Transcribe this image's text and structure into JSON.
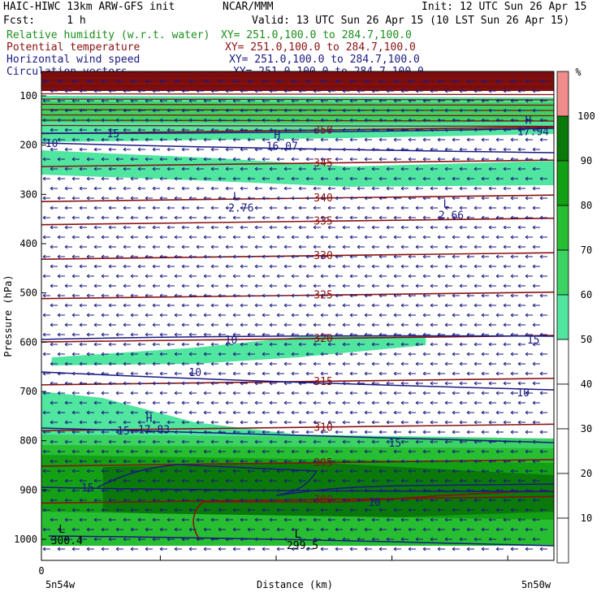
{
  "header": {
    "model": "HAIC-HIWC 13km ARW-GFS init",
    "org": "NCAR/MMM",
    "init": "Init: 12 UTC Sun 26 Apr 15",
    "fcst": "Fcst:     1 h",
    "valid": "Valid: 13 UTC Sun 26 Apr 15 (10 LST Sun 26 Apr 15)"
  },
  "fields": [
    {
      "name": "Relative humidity (w.r.t. water)",
      "xy": "XY= 251.0,100.0 to 284.7,100.0",
      "color": "#1a8f1a"
    },
    {
      "name": "Potential temperature",
      "xy": "XY= 251.0,100.0 to 284.7,100.0",
      "color": "#8b1010"
    },
    {
      "name": "Horizontal wind speed",
      "xy": "XY= 251.0,100.0 to 284.7,100.0",
      "color": "#1a1a80"
    },
    {
      "name": "Circulation vectors",
      "xy": "XY= 251.0,100.0 to 284.7,100.0",
      "color": "#1a1a80"
    }
  ],
  "chart_data": {
    "type": "heatmap",
    "title": "",
    "xlabel": "Distance (km)",
    "ylabel": "Pressure (hPa)",
    "x_origin_label": "0",
    "x_left_label": "5n54w",
    "x_right_label": "5n50w",
    "y_ticks": [
      100,
      200,
      300,
      400,
      500,
      600,
      700,
      800,
      900,
      1000
    ],
    "ylim": [
      1050,
      50
    ],
    "colorbar": {
      "unit": "%",
      "levels": [
        10,
        20,
        30,
        40,
        50,
        60,
        70,
        80,
        90,
        100
      ],
      "colors": {
        "50-60": "#50e6a0",
        "60-70": "#3cd264",
        "70-80": "#28be32",
        "80-90": "#14a014",
        "90-100": "#0a780a",
        "100+": "#f08c8c"
      }
    },
    "theta_contours": [
      {
        "label": "350",
        "p": 170
      },
      {
        "label": "345",
        "p": 237
      },
      {
        "label": "340",
        "p": 308
      },
      {
        "label": "335",
        "p": 355
      },
      {
        "label": "330",
        "p": 425
      },
      {
        "label": "325",
        "p": 505
      },
      {
        "label": "320",
        "p": 593
      },
      {
        "label": "315",
        "p": 680
      },
      {
        "label": "310",
        "p": 773
      },
      {
        "label": "305",
        "p": 845
      },
      {
        "label": "300",
        "p": 920
      }
    ],
    "wind_contour_labels": [
      "10",
      "15",
      "15",
      "10",
      "10",
      "15",
      "15",
      "15",
      "10",
      "10"
    ],
    "extrema": [
      {
        "kind": "L",
        "value": "2.76",
        "x_frac": 0.38,
        "p": 315
      },
      {
        "kind": "L",
        "value": "2.66",
        "x_frac": 0.79,
        "p": 330
      },
      {
        "kind": "H",
        "value": "16.07",
        "x_frac": 0.46,
        "p": 190
      },
      {
        "kind": "H",
        "value": "17.94",
        "x_frac": 0.95,
        "p": 160
      },
      {
        "kind": "H",
        "value": "17.83",
        "x_frac": 0.21,
        "p": 765
      },
      {
        "kind": "L",
        "value": "300.4",
        "x_frac": 0.04,
        "p": 990
      },
      {
        "kind": "L",
        "value": "299.5",
        "x_frac": 0.5,
        "p": 1000
      }
    ]
  }
}
